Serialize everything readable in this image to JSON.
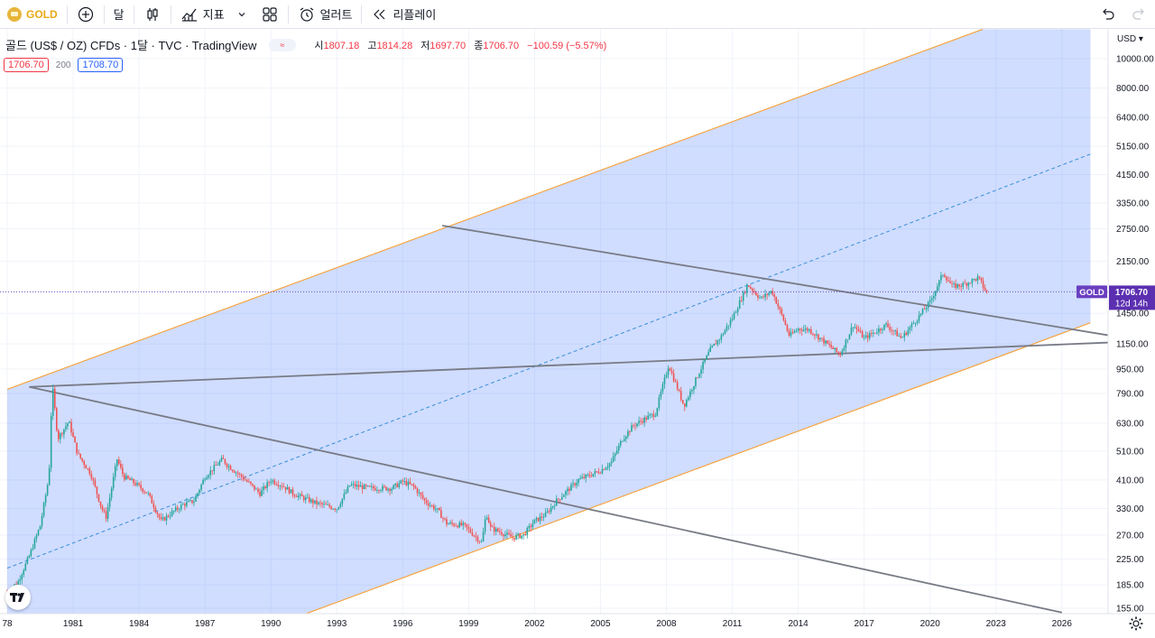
{
  "toolbar": {
    "symbol": "GOLD",
    "interval": "달",
    "indicators_label": "지표",
    "alert_label": "얼러트",
    "replay_label": "리플레이"
  },
  "legend": {
    "title": "골드 (US$ / OZ) CFDs · 1달 · TVC · TradingView",
    "toggle": "≈",
    "open_key": "시",
    "open": "1807.18",
    "high_key": "고",
    "high": "1814.28",
    "low_key": "저",
    "low": "1697.70",
    "close_key": "종",
    "close": "1706.70",
    "change": "−100.59 (−5.57%)",
    "sell": "1706.70",
    "spread": "200",
    "buy": "1708.70"
  },
  "chart_data": {
    "type": "candlestick",
    "title": "골드 (US$ / OZ) CFDs",
    "currency": "USD",
    "scale": "log",
    "y_ticks": [
      155,
      185,
      225,
      270,
      330,
      410,
      510,
      630,
      790,
      950,
      1150,
      1450,
      1706.7,
      2150,
      2750,
      3350,
      4150,
      5150,
      6400,
      8000,
      10000
    ],
    "y_tick_labels": [
      "155.00",
      "185.00",
      "225.00",
      "270.00",
      "330.00",
      "410.00",
      "510.00",
      "630.00",
      "790.00",
      "950.00",
      "1150.00",
      "1450.00",
      "",
      "2150.00",
      "2750.00",
      "3350.00",
      "4150.00",
      "5150.00",
      "6400.00",
      "8000.00",
      "10000.00"
    ],
    "x_ticks": [
      "78",
      "1981",
      "1984",
      "1987",
      "1990",
      "1993",
      "1996",
      "1999",
      "2002",
      "2005",
      "2008",
      "2011",
      "2014",
      "2017",
      "2020",
      "2023",
      "2026"
    ],
    "xlim": [
      1978,
      2028.5
    ],
    "ylim_visible": [
      145,
      12500
    ],
    "series": [
      {
        "name": "GOLD",
        "last": 1706.7,
        "countdown": "12d 14h",
        "anchors": [
          [
            1978.0,
            175
          ],
          [
            1978.5,
            190
          ],
          [
            1979.0,
            230
          ],
          [
            1979.5,
            290
          ],
          [
            1979.9,
            420
          ],
          [
            1980.05,
            850
          ],
          [
            1980.3,
            560
          ],
          [
            1980.8,
            640
          ],
          [
            1981.2,
            500
          ],
          [
            1981.8,
            430
          ],
          [
            1982.3,
            330
          ],
          [
            1982.5,
            310
          ],
          [
            1983.0,
            480
          ],
          [
            1983.3,
            420
          ],
          [
            1983.8,
            400
          ],
          [
            1984.4,
            370
          ],
          [
            1985.0,
            300
          ],
          [
            1985.5,
            320
          ],
          [
            1986.0,
            340
          ],
          [
            1986.5,
            350
          ],
          [
            1987.0,
            420
          ],
          [
            1987.8,
            480
          ],
          [
            1988.0,
            460
          ],
          [
            1988.5,
            430
          ],
          [
            1989.0,
            400
          ],
          [
            1989.5,
            370
          ],
          [
            1990.0,
            410
          ],
          [
            1990.6,
            390
          ],
          [
            1991.0,
            370
          ],
          [
            1992.0,
            345
          ],
          [
            1993.0,
            330
          ],
          [
            1993.6,
            395
          ],
          [
            1994.5,
            385
          ],
          [
            1995.5,
            385
          ],
          [
            1996.0,
            405
          ],
          [
            1996.5,
            390
          ],
          [
            1997.0,
            350
          ],
          [
            1997.6,
            325
          ],
          [
            1998.0,
            295
          ],
          [
            1998.8,
            290
          ],
          [
            1999.6,
            255
          ],
          [
            1999.8,
            320
          ],
          [
            2000.0,
            285
          ],
          [
            2001.0,
            265
          ],
          [
            2001.5,
            270
          ],
          [
            2002.0,
            300
          ],
          [
            2002.5,
            315
          ],
          [
            2003.0,
            350
          ],
          [
            2004.0,
            410
          ],
          [
            2005.0,
            440
          ],
          [
            2005.5,
            470
          ],
          [
            2006.0,
            560
          ],
          [
            2006.5,
            620
          ],
          [
            2007.0,
            650
          ],
          [
            2007.5,
            680
          ],
          [
            2008.1,
            980
          ],
          [
            2008.8,
            720
          ],
          [
            2009.5,
            930
          ],
          [
            2010.0,
            1100
          ],
          [
            2010.5,
            1220
          ],
          [
            2011.0,
            1400
          ],
          [
            2011.7,
            1800
          ],
          [
            2012.3,
            1620
          ],
          [
            2012.8,
            1720
          ],
          [
            2013.3,
            1400
          ],
          [
            2013.6,
            1220
          ],
          [
            2014.0,
            1290
          ],
          [
            2014.5,
            1280
          ],
          [
            2015.0,
            1200
          ],
          [
            2015.9,
            1060
          ],
          [
            2016.5,
            1330
          ],
          [
            2017.0,
            1200
          ],
          [
            2017.5,
            1260
          ],
          [
            2018.0,
            1330
          ],
          [
            2018.7,
            1200
          ],
          [
            2019.5,
            1420
          ],
          [
            2020.0,
            1580
          ],
          [
            2020.6,
            1970
          ],
          [
            2021.0,
            1780
          ],
          [
            2021.5,
            1800
          ],
          [
            2022.2,
            1900
          ],
          [
            2022.55,
            1706.7
          ]
        ]
      }
    ],
    "trendlines": [
      {
        "name": "channel-upper",
        "points": [
          [
            1978.0,
            815
          ],
          [
            2022.4,
            12500
          ]
        ]
      },
      {
        "name": "channel-lower",
        "points": [
          [
            1991.2,
            145
          ],
          [
            2027.3,
            1350
          ]
        ]
      },
      {
        "name": "channel-mid",
        "points": [
          [
            1978.0,
            210
          ],
          [
            2027.3,
            4850
          ]
        ]
      },
      {
        "name": "resistance-1980",
        "points": [
          [
            1979.0,
            830
          ],
          [
            2026.0,
            150
          ]
        ]
      },
      {
        "name": "support-long",
        "points": [
          [
            1979.0,
            830
          ],
          [
            2028.5,
            1165
          ]
        ]
      },
      {
        "name": "resistance-2011",
        "points": [
          [
            1997.8,
            2820
          ],
          [
            2028.5,
            1215
          ]
        ]
      }
    ]
  }
}
